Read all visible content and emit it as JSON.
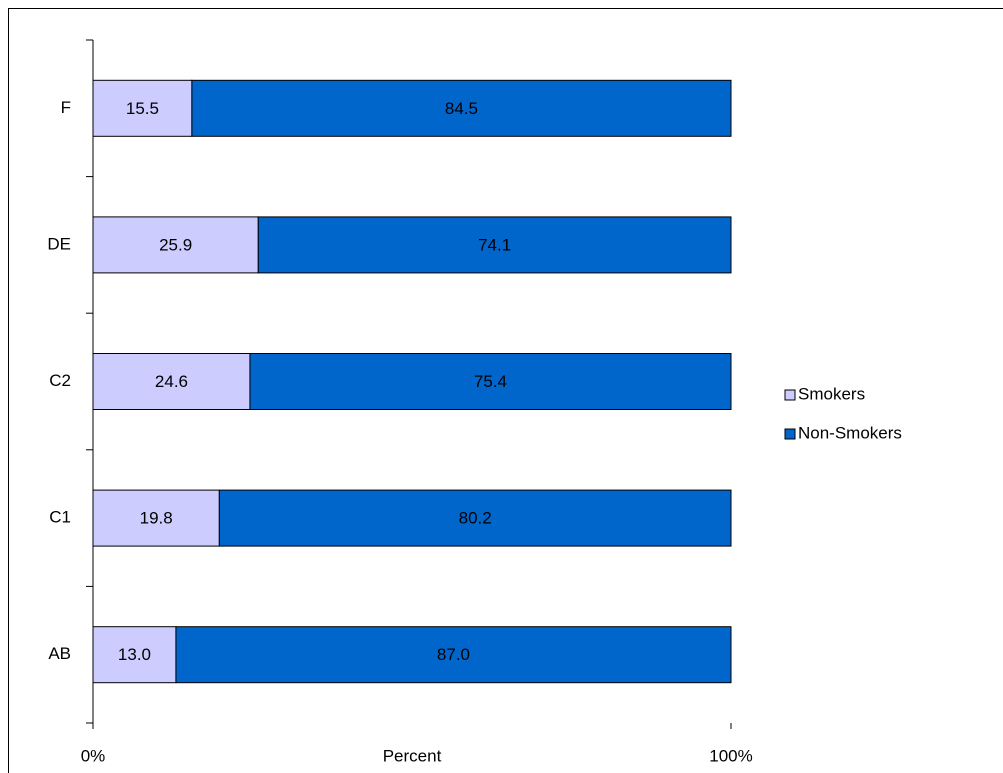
{
  "chart_data": {
    "type": "stacked-barh",
    "categories": [
      "AB",
      "C1",
      "C2",
      "DE",
      "F"
    ],
    "series": [
      {
        "name": "Smokers",
        "color": "#ccccff",
        "values": [
          13.0,
          19.8,
          24.6,
          25.9,
          15.5
        ],
        "value_labels": [
          "13.0",
          "19.8",
          "24.6",
          "25.9",
          "15.5"
        ]
      },
      {
        "name": "Non-Smokers",
        "color": "#0066cc",
        "values": [
          87.0,
          80.2,
          75.4,
          74.1,
          84.5
        ],
        "value_labels": [
          "87.0",
          "80.2",
          "75.4",
          "74.1",
          "84.5"
        ]
      }
    ],
    "xlabel": "Percent",
    "xlim": [
      0,
      100
    ],
    "xticks": [
      {
        "value": 0,
        "label": "0%"
      },
      {
        "value": 100,
        "label": "100%"
      }
    ],
    "legend": "right"
  }
}
